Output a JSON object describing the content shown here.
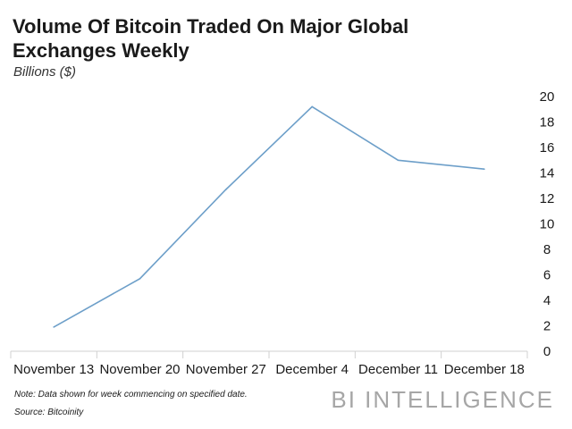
{
  "chart_data": {
    "type": "line",
    "title": "Volume Of Bitcoin Traded On Major Global Exchanges Weekly",
    "subtitle": "Billions ($)",
    "categories": [
      "November 13",
      "November 20",
      "November 27",
      "December 4",
      "December 11",
      "December 18"
    ],
    "series": [
      {
        "values": [
          1.9,
          5.7,
          12.7,
          19.2,
          15.0,
          14.3
        ]
      }
    ],
    "ylim": [
      0,
      20
    ],
    "yticks": [
      0,
      2,
      4,
      6,
      8,
      10,
      12,
      14,
      16,
      18,
      20
    ],
    "y_axis_position": "right",
    "grid": false,
    "line_color": "#6d9fc9",
    "x_divider_color": "#d0d0d0"
  },
  "footer": {
    "note": "Note: Data shown for week commencing on specified date.",
    "source": "Source: Bitcoinity",
    "brand": "BI INTELLIGENCE"
  }
}
